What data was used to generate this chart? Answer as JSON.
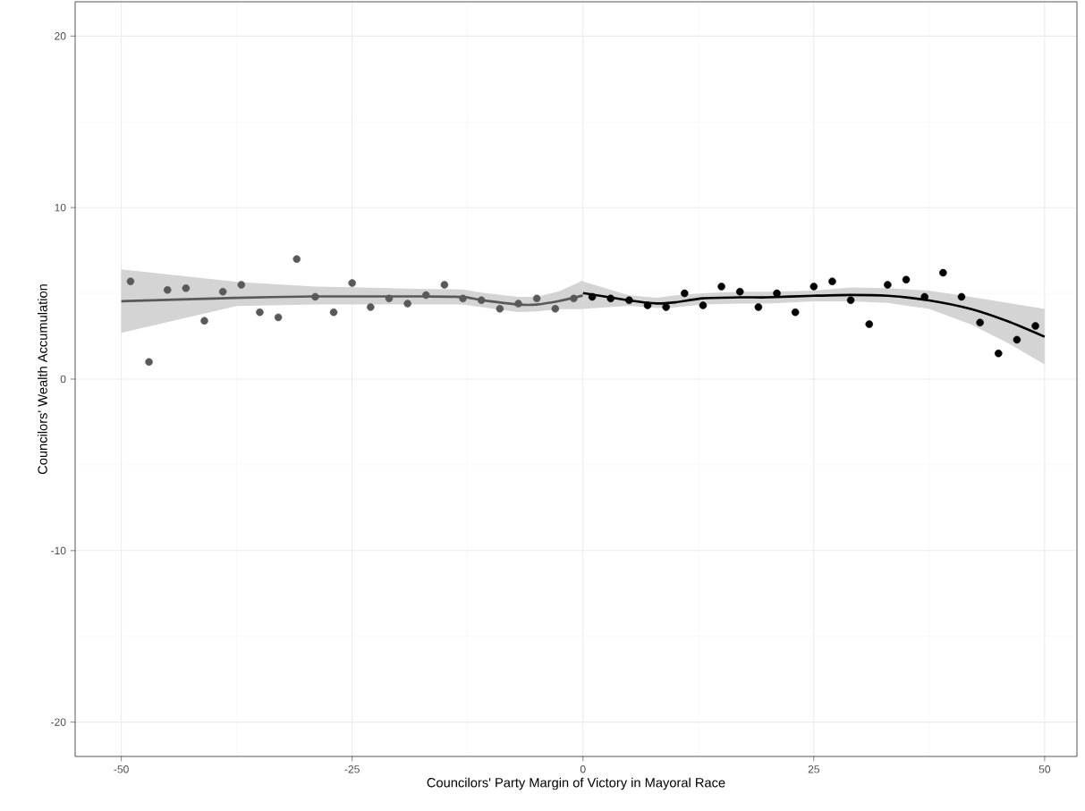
{
  "chart_data": {
    "type": "scatter",
    "xlabel": "Councilors' Party Margin of Victory in Mayoral Race",
    "ylabel": "Councilors' Wealth Accumulation",
    "xlim": [
      -55,
      53.5
    ],
    "ylim": [
      -22,
      22
    ],
    "xticks": [
      -50,
      -25,
      0,
      25,
      50
    ],
    "yticks": [
      -20,
      -10,
      0,
      10,
      20
    ],
    "grid": true,
    "series": [
      {
        "marker": "circle",
        "color": "#595959",
        "x": [
          -49,
          -47,
          -45,
          -43,
          -41,
          -39,
          -37,
          -35,
          -33,
          -31,
          -29,
          -27,
          -25,
          -23,
          -21,
          -19,
          -17,
          -15,
          -13,
          -11,
          -9,
          -7,
          -5,
          -3,
          -1
        ],
        "values": [
          5.7,
          1.0,
          5.2,
          5.3,
          3.4,
          5.1,
          5.5,
          3.9,
          3.6,
          7.0,
          4.8,
          3.9,
          5.6,
          4.2,
          4.7,
          4.4,
          4.9,
          5.5,
          4.7,
          4.6,
          4.1,
          4.4,
          4.7,
          4.1,
          4.7
        ]
      },
      {
        "marker": "circle",
        "color": "#000000",
        "x": [
          1,
          3,
          5,
          7,
          9,
          11,
          13,
          15,
          17,
          19,
          21,
          23,
          25,
          27,
          29,
          31,
          33,
          35,
          37,
          39,
          41,
          43,
          45,
          47,
          49
        ],
        "values": [
          4.8,
          4.7,
          4.6,
          4.3,
          4.2,
          5.0,
          4.3,
          5.4,
          5.1,
          4.2,
          5.0,
          3.9,
          5.4,
          5.7,
          4.6,
          3.2,
          5.5,
          5.8,
          4.8,
          6.2,
          4.8,
          3.3,
          1.5,
          2.3,
          3.1
        ]
      },
      {
        "type": "line",
        "marker": "none",
        "color": "#595959",
        "x": [
          -50,
          -37.5,
          -29,
          -25,
          -17,
          -13,
          -11,
          -7,
          -5,
          -2.5,
          0
        ],
        "values": [
          4.54,
          4.74,
          4.82,
          4.82,
          4.82,
          4.79,
          4.61,
          4.35,
          4.35,
          4.56,
          4.88
        ],
        "lower": [
          2.7,
          4.26,
          4.35,
          4.35,
          4.35,
          4.35,
          4.2,
          3.91,
          3.95,
          4.08,
          4.08
        ],
        "upper": [
          6.4,
          5.67,
          5.4,
          5.35,
          5.25,
          5.23,
          5.05,
          4.79,
          4.8,
          5.14,
          5.76
        ]
      },
      {
        "type": "line",
        "marker": "none",
        "color": "#000000",
        "x": [
          0,
          5,
          8,
          10,
          13,
          17,
          20,
          25,
          29,
          33,
          37.5,
          42,
          46,
          50
        ],
        "values": [
          5.02,
          4.59,
          4.41,
          4.48,
          4.71,
          4.77,
          4.77,
          4.86,
          4.91,
          4.86,
          4.59,
          4.09,
          3.37,
          2.47
        ],
        "lower": [
          4.09,
          4.27,
          4.15,
          4.18,
          4.35,
          4.4,
          4.4,
          4.53,
          4.53,
          4.45,
          4.09,
          3.19,
          2.11,
          0.86
        ],
        "upper": [
          5.7,
          4.89,
          4.75,
          4.89,
          5.0,
          5.1,
          5.1,
          5.16,
          5.34,
          5.3,
          5.16,
          4.8,
          4.44,
          4.09
        ]
      }
    ]
  }
}
